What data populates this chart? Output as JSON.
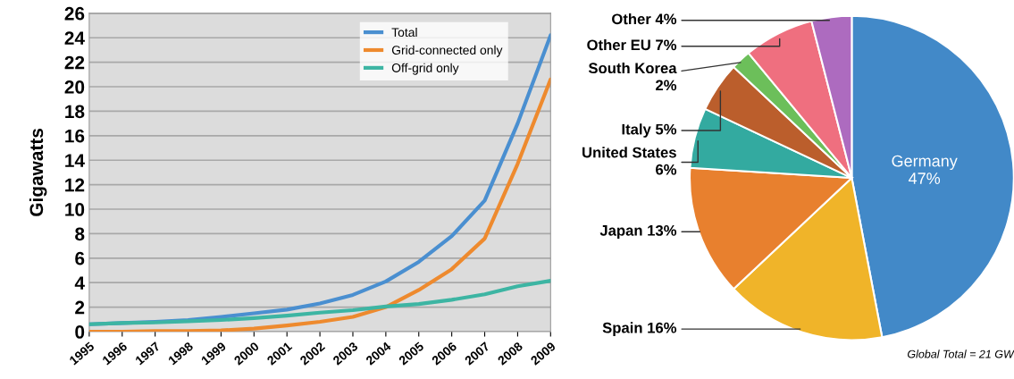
{
  "chart_data": [
    {
      "type": "line",
      "ylabel": "Gigawatts",
      "categories": [
        "1995",
        "1996",
        "1997",
        "1998",
        "1999",
        "2000",
        "2001",
        "2002",
        "2003",
        "2004",
        "2005",
        "2006",
        "2007",
        "2008",
        "2009"
      ],
      "series": [
        {
          "name": "Total",
          "color": "#4a8fd0",
          "values": [
            0.6,
            0.7,
            0.8,
            0.95,
            1.2,
            1.5,
            1.8,
            2.3,
            3.0,
            4.1,
            5.7,
            7.8,
            10.7,
            17,
            24.2
          ]
        },
        {
          "name": "Grid-connected only",
          "color": "#ee8a2e",
          "values": [
            0,
            0,
            0.05,
            0.05,
            0.1,
            0.25,
            0.5,
            0.8,
            1.2,
            2.0,
            3.4,
            5.1,
            7.6,
            13.7,
            20.6
          ]
        },
        {
          "name": "Off-grid only",
          "color": "#3db5a3",
          "values": [
            0.6,
            0.7,
            0.75,
            0.85,
            0.95,
            1.1,
            1.3,
            1.55,
            1.75,
            2.05,
            2.25,
            2.6,
            3.05,
            3.7,
            4.15
          ]
        }
      ],
      "ylim": [
        0,
        26
      ],
      "yticks": [
        0,
        2,
        4,
        6,
        8,
        10,
        12,
        14,
        16,
        18,
        20,
        22,
        24,
        26
      ],
      "grid": "y",
      "legend": "top right",
      "line_style": "solid"
    },
    {
      "type": "pie",
      "categories": [
        "Germany",
        "Spain",
        "Japan",
        "United States",
        "Italy",
        "South Korea",
        "Other EU",
        "Other"
      ],
      "values": [
        47,
        16,
        13,
        6,
        5,
        2,
        7,
        4
      ],
      "value_labels": [
        "47%",
        "16%",
        "13%",
        "6%",
        "5%",
        "2%",
        "7%",
        "4%"
      ],
      "colors": [
        "#4289c8",
        "#f0b429",
        "#e8802e",
        "#33aaa0",
        "#bb5e2c",
        "#6cbf5a",
        "#ef6f7f",
        "#ad6bbf"
      ],
      "annotations": [
        "Global Total = 21 GW"
      ]
    }
  ]
}
